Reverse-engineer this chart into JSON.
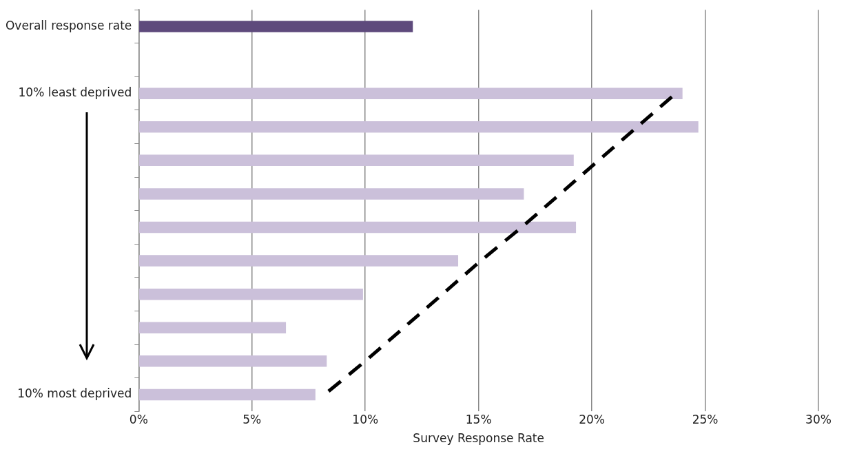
{
  "chart_data": {
    "type": "bar",
    "orientation": "horizontal",
    "xlabel": "Survey Response Rate",
    "categories": [
      "Overall response rate",
      null,
      "10% least deprived",
      null,
      null,
      null,
      null,
      null,
      null,
      null,
      null,
      "10% most deprived"
    ],
    "values": [
      12.1,
      null,
      24.0,
      24.7,
      19.2,
      17.0,
      19.3,
      14.1,
      9.9,
      6.5,
      8.3,
      7.8
    ],
    "series": [
      {
        "type": "line",
        "values": [
          null,
          null,
          23.7,
          22.0,
          20.3,
          18.6,
          16.9,
          15.1,
          13.4,
          11.7,
          10.0,
          8.2
        ],
        "color": "#000000",
        "line_style": "dashed",
        "marker": "none"
      }
    ],
    "colors": [
      "#5e4a7c",
      null,
      "#cbc0da",
      "#cbc0da",
      "#cbc0da",
      "#cbc0da",
      "#cbc0da",
      "#cbc0da",
      "#cbc0da",
      "#cbc0da",
      "#cbc0da",
      "#cbc0da"
    ],
    "xlim": [
      0,
      30
    ],
    "xticks": [
      {
        "value": 0,
        "label": "0%"
      },
      {
        "value": 5,
        "label": "5%"
      },
      {
        "value": 10,
        "label": "10%"
      },
      {
        "value": 15,
        "label": "15%"
      },
      {
        "value": 20,
        "label": "20%"
      },
      {
        "value": 25,
        "label": "25%"
      },
      {
        "value": 30,
        "label": "30%"
      }
    ],
    "grid": "x",
    "legend": false
  }
}
